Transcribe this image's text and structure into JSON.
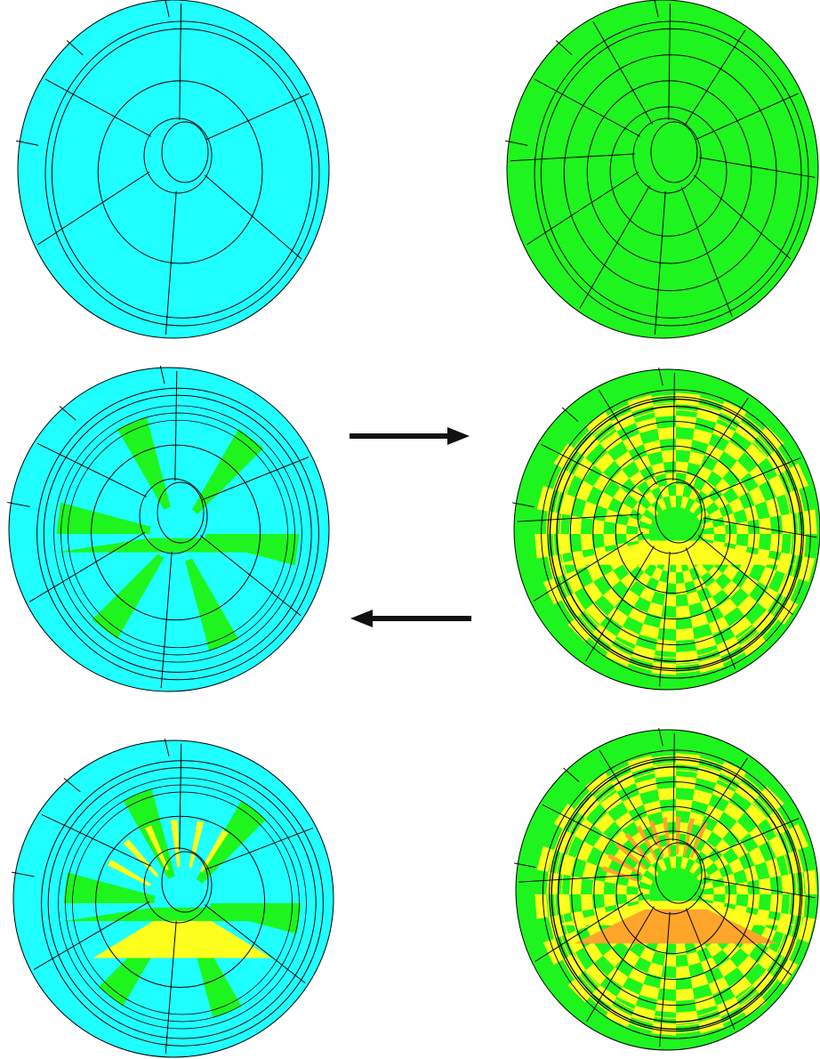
{
  "colors": {
    "cyan": "#1fffff",
    "green": "#1ef51e",
    "yellow": "#ffff1e",
    "orange": "#ffa52a",
    "line": "#000000",
    "arrow": "#111111"
  },
  "panels": [
    {
      "id": "coarse-base",
      "base": "cyan",
      "spokes": 6,
      "rings": 2,
      "pattern": "none"
    },
    {
      "id": "fine-base",
      "base": "green",
      "spokes": 12,
      "rings": 4,
      "pattern": "none"
    },
    {
      "id": "coarse-level-1",
      "base": "cyan",
      "spokes": 6,
      "rings": 2,
      "pattern": "lotus",
      "fill": "green"
    },
    {
      "id": "fine-level-1",
      "base": "green",
      "spokes": 12,
      "rings": 4,
      "pattern": "checker",
      "fill": "yellow"
    },
    {
      "id": "coarse-level-2",
      "base": "cyan",
      "spokes": 6,
      "rings": 2,
      "pattern": "lotus-2",
      "fill": "green",
      "accent": "yellow"
    },
    {
      "id": "fine-level-2",
      "base": "green",
      "spokes": 12,
      "rings": 4,
      "pattern": "checker-2",
      "fill": "yellow",
      "accent": "orange"
    }
  ],
  "arrows": [
    {
      "id": "coarse-to-fine",
      "direction": "right"
    },
    {
      "id": "fine-to-coarse",
      "direction": "left"
    }
  ]
}
